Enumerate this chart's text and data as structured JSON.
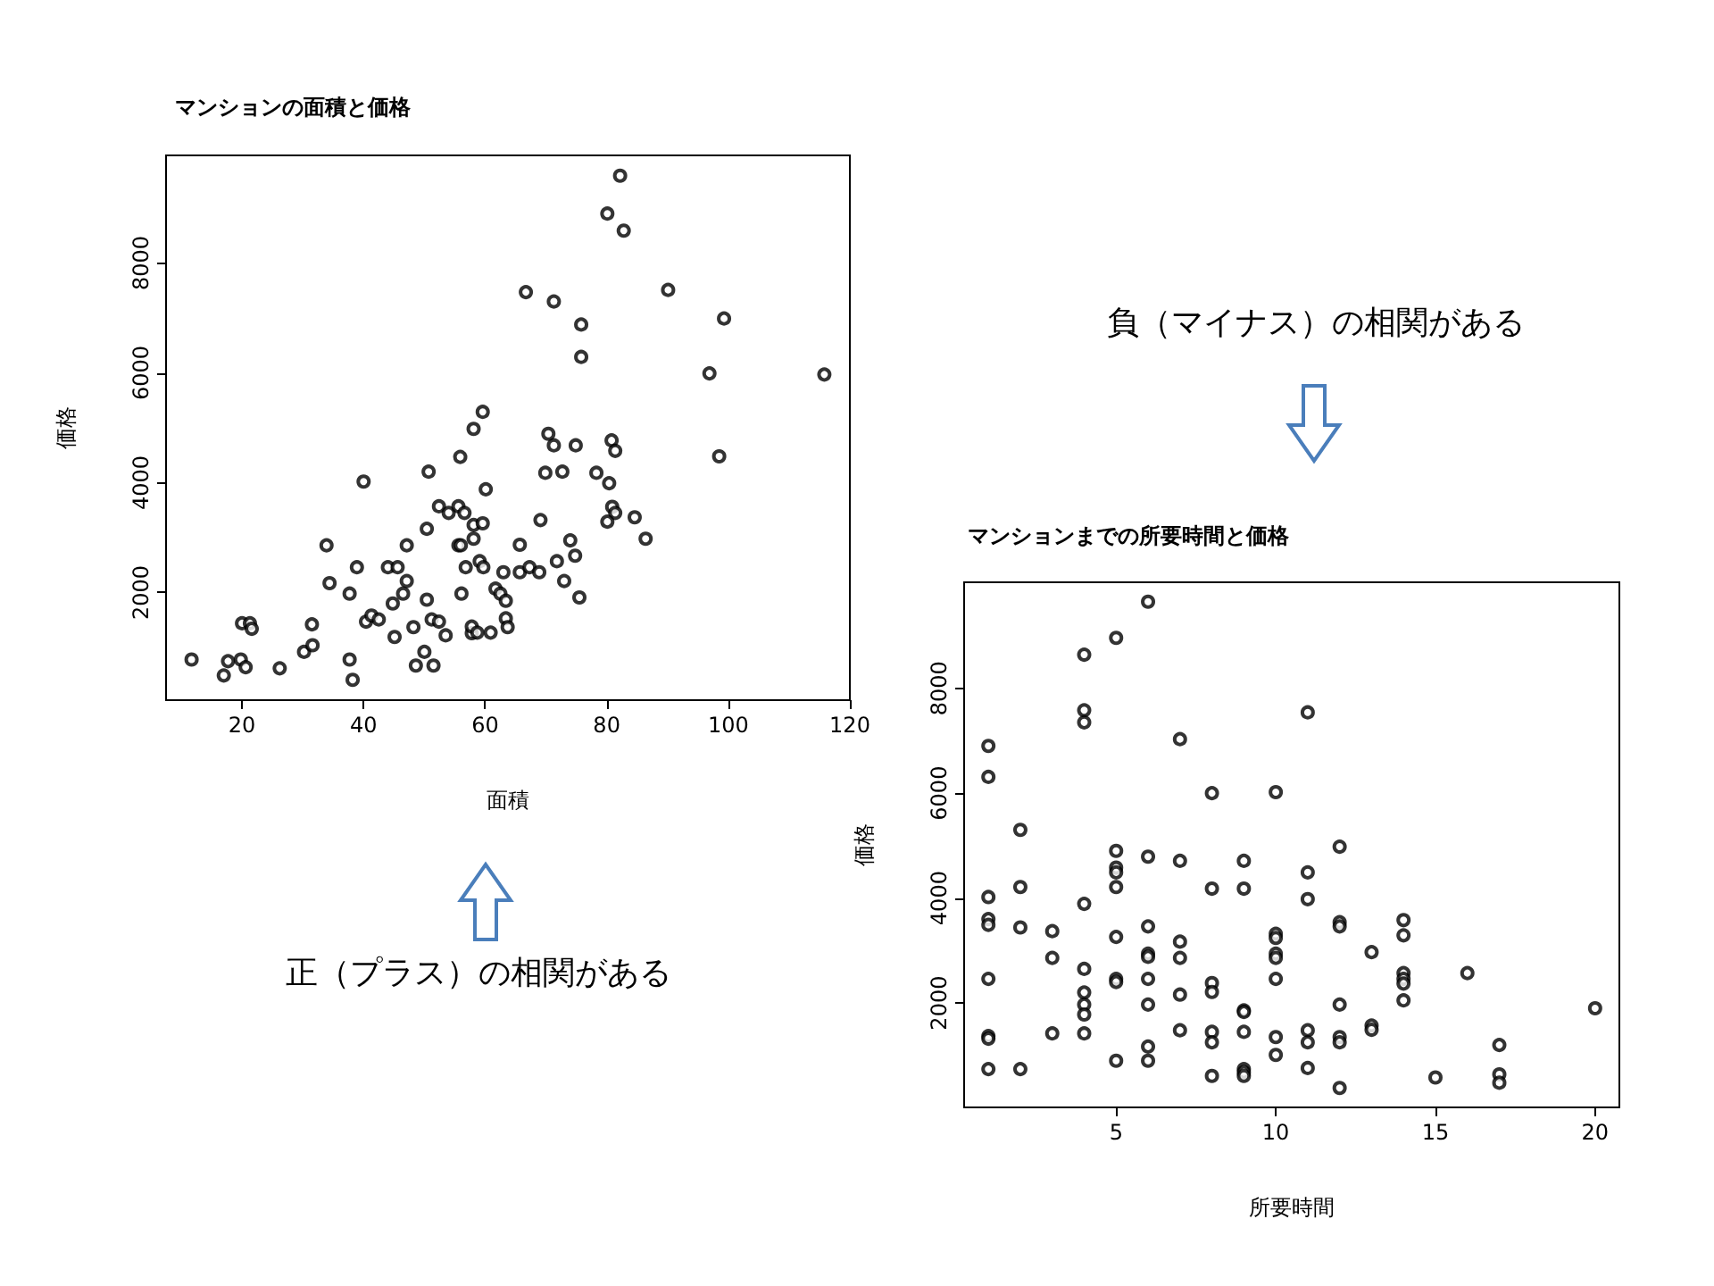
{
  "chart_data": [
    {
      "type": "scatter",
      "title": "マンションの面積と価格",
      "xlabel": "面積",
      "ylabel": "価格",
      "color": "#000000",
      "marker": "circle",
      "xlim": [
        7.5,
        120
      ],
      "xticks": [
        20,
        40,
        60,
        80,
        100,
        120
      ],
      "ylim": [
        40,
        9960
      ],
      "yticks": [
        2000,
        4000,
        6000,
        8000
      ],
      "annotations": [
        "正（プラス）の相関がある"
      ],
      "x": [
        11.7,
        17.0,
        17.7,
        19.8,
        20.6,
        20.0,
        21.3,
        21.6,
        26.2,
        30.2,
        31.6,
        31.5,
        34.4,
        33.9,
        37.7,
        37.7,
        38.2,
        38.9,
        40.0,
        40.4,
        41.3,
        42.5,
        44.0,
        45.6,
        44.8,
        45.1,
        46.5,
        47.1,
        47.1,
        48.2,
        48.6,
        50.0,
        50.4,
        50.4,
        50.7,
        51.2,
        51.5,
        52.4,
        52.4,
        53.5,
        54.0,
        55.6,
        56.6,
        55.6,
        56.0,
        55.9,
        56.1,
        56.8,
        57.8,
        57.8,
        58.1,
        58.1,
        58.1,
        58.7,
        59.1,
        59.6,
        59.6,
        59.7,
        60.1,
        60.9,
        61.7,
        62.5,
        63.0,
        63.4,
        63.4,
        63.7,
        65.7,
        65.7,
        67.3,
        68.9,
        69.1,
        66.7,
        71.3,
        69.9,
        72.7,
        70.4,
        71.3,
        74.9,
        71.8,
        73.0,
        74.0,
        74.8,
        75.5,
        75.8,
        75.8,
        78.3,
        80.4,
        80.1,
        82.2,
        82.8,
        80.8,
        81.4,
        80.9,
        81.4,
        80.1,
        84.6,
        86.4,
        90.1,
        99.3,
        96.9,
        98.5,
        115.8
      ],
      "values": [
        780,
        490,
        750,
        780,
        640,
        1440,
        1440,
        1340,
        620,
        920,
        1040,
        1420,
        2170,
        2860,
        1980,
        780,
        410,
        2460,
        4020,
        1470,
        1580,
        1510,
        2460,
        2460,
        1800,
        1190,
        1980,
        2210,
        2860,
        1370,
        670,
        920,
        1870,
        3160,
        4200,
        1510,
        670,
        1470,
        3570,
        1220,
        3450,
        3570,
        3450,
        2860,
        2860,
        4470,
        1980,
        2460,
        1260,
        1380,
        2980,
        3230,
        4980,
        1270,
        2570,
        3260,
        5290,
        2460,
        3880,
        1270,
        2070,
        1980,
        2370,
        1850,
        1530,
        1370,
        2870,
        2370,
        2460,
        2370,
        3320,
        7470,
        7300,
        4180,
        4200,
        4890,
        4680,
        4680,
        2570,
        2210,
        2950,
        2670,
        1910,
        6880,
        6290,
        4180,
        3990,
        8900,
        9590,
        8590,
        4770,
        4580,
        3560,
        3450,
        3290,
        3370,
        2980,
        7510,
        6990,
        5990,
        4480,
        5970
      ]
    },
    {
      "type": "scatter",
      "title": "マンションまでの所要時間と価格",
      "xlabel": "所要時間",
      "ylabel": "価格",
      "color": "#000000",
      "marker": "circle",
      "xlim": [
        0.24,
        20.76
      ],
      "xticks": [
        5,
        10,
        15,
        20
      ],
      "ylim": [
        10,
        10020
      ],
      "yticks": [
        2000,
        4000,
        6000,
        8000
      ],
      "annotations": [
        "負（マイナス）の相関がある"
      ],
      "x": [
        1,
        1,
        1,
        1,
        1,
        1,
        1,
        1,
        1,
        2,
        2,
        2,
        2,
        3,
        3,
        3,
        4,
        4,
        4,
        4,
        4,
        4,
        4,
        4,
        4,
        5,
        5,
        5,
        5,
        5,
        5,
        5,
        5,
        5,
        6,
        6,
        6,
        6,
        6,
        6,
        6,
        6,
        6,
        7,
        7,
        7,
        7,
        7,
        7,
        8,
        8,
        8,
        8,
        8,
        8,
        8,
        9,
        9,
        9,
        9,
        9,
        9,
        9,
        9,
        10,
        10,
        10,
        10,
        10,
        10,
        10,
        10,
        11,
        11,
        11,
        11,
        11,
        11,
        12,
        12,
        12,
        12,
        12,
        12,
        12,
        13,
        13,
        13,
        14,
        14,
        14,
        14,
        14,
        14,
        15,
        16,
        17,
        17,
        17,
        20
      ],
      "values": [
        6900,
        6310,
        4020,
        3600,
        3490,
        2460,
        1370,
        1320,
        740,
        5300,
        4210,
        3440,
        740,
        3370,
        2860,
        1420,
        8640,
        7580,
        7350,
        3890,
        2650,
        2200,
        1970,
        1780,
        1420,
        8960,
        4900,
        4580,
        4490,
        4210,
        3260,
        2460,
        2400,
        900,
        9650,
        4790,
        3460,
        2940,
        2880,
        2460,
        1970,
        1170,
        900,
        7030,
        4710,
        3170,
        2860,
        2160,
        1480,
        6000,
        4180,
        2380,
        2210,
        1450,
        1250,
        610,
        4710,
        4180,
        1860,
        1830,
        1450,
        740,
        680,
        610,
        6020,
        3320,
        3240,
        2940,
        2860,
        2460,
        1350,
        1010,
        7540,
        4490,
        3980,
        1480,
        1250,
        760,
        4980,
        3540,
        3460,
        1970,
        1350,
        1250,
        380,
        2970,
        1570,
        1490,
        3580,
        3290,
        2570,
        2460,
        2370,
        2050,
        580,
        2570,
        1200,
        640,
        480,
        1900
      ]
    }
  ]
}
